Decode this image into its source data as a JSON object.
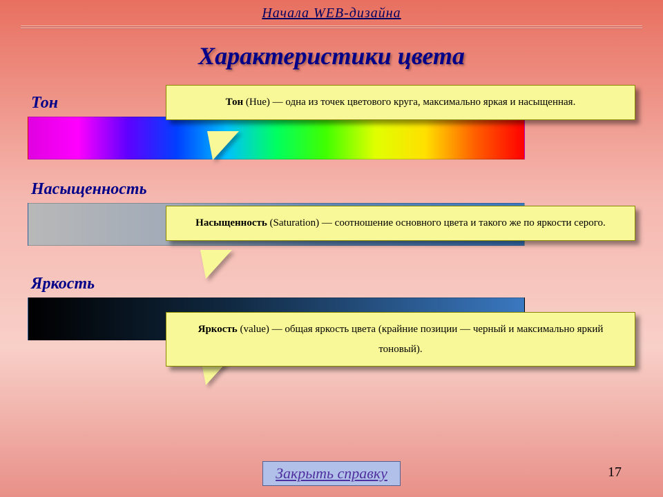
{
  "header": {
    "breadcrumb": "Начала WEB-дизайна"
  },
  "title": "Характеристики цвета",
  "sections": {
    "hue": {
      "label": "Тон",
      "callout_bold": "Тон",
      "callout_rest": " (Hue) — одна из точек цветового круга, максимально яркая и насыщенная.",
      "bar_type": "hue-spectrum",
      "bar_colors": [
        "#e000e0",
        "#ff00ff",
        "#6000ff",
        "#0040ff",
        "#00c0ff",
        "#00ff60",
        "#40ff00",
        "#e0ff00",
        "#ffe000",
        "#ff6000",
        "#ff0000"
      ]
    },
    "saturation": {
      "label": "Насыщенность",
      "callout_bold": "Насыщенность",
      "callout_rest": " (Saturation) — соотношение основного цвета и такого же по яркости серого.",
      "bar_type": "gray-to-blue",
      "bar_colors": [
        "#b8b8b8",
        "#3a78c0"
      ]
    },
    "value": {
      "label": "Яркость",
      "callout_bold": "Яркость",
      "callout_rest": " (value)  — общая яркость цвета (крайние позиции — черный и максимально яркий тоновый).",
      "bar_type": "black-to-blue",
      "bar_colors": [
        "#000000",
        "#3a78c0"
      ]
    }
  },
  "footer": {
    "close_label": "Закрыть справку",
    "page_number": "17"
  },
  "style": {
    "callout_bg": "#f8f898",
    "callout_border": "#888800",
    "title_color": "#000088",
    "label_color": "#000088",
    "button_bg": "#b0c0e8",
    "button_text": "#5030a0",
    "bg_gradient": [
      "#e87060",
      "#f5b8b0",
      "#f8d0c8",
      "#e89088"
    ]
  }
}
